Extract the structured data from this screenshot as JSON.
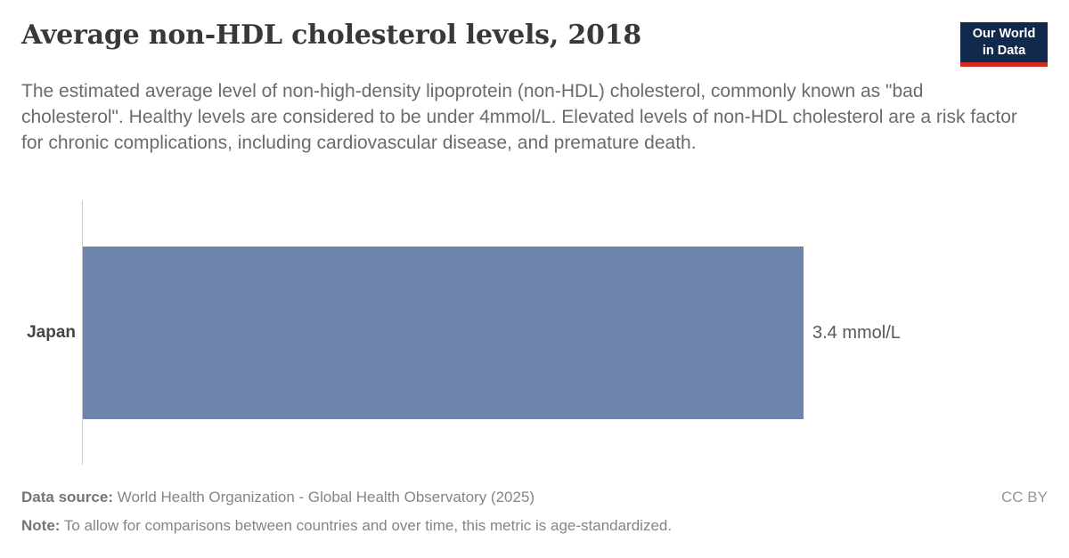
{
  "header": {
    "title": "Average non-HDL cholesterol levels, 2018",
    "logo": {
      "line1": "Our World",
      "line2": "in Data"
    }
  },
  "subtitle": "The estimated average level of non-high-density lipoprotein (non-HDL) cholesterol, commonly known as \"bad cholesterol\". Healthy levels are considered to be under 4mmol/L. Elevated levels of non-HDL cholesterol are a risk factor for chronic complications, including cardiovascular disease, and premature death.",
  "chart_data": {
    "type": "bar",
    "orientation": "horizontal",
    "title": "Average non-HDL cholesterol levels, 2018",
    "categories": [
      "Japan"
    ],
    "values": [
      3.4
    ],
    "value_labels": [
      "3.4 mmol/L"
    ],
    "unit": "mmol/L",
    "xlim": [
      0,
      3.4
    ],
    "grid": false,
    "legend": false,
    "bar_color": "#6d84ac"
  },
  "footer": {
    "data_source_label": "Data source:",
    "data_source": " World Health Organization - Global Health Observatory (2025)",
    "note_label": "Note:",
    "note": " To allow for comparisons between countries and over time, this metric is age-standardized.",
    "license": "CC BY"
  },
  "colors": {
    "bar": "#6d84ac",
    "logo_navy": "#12294e",
    "logo_red": "#d12b1f",
    "title_text": "#383838",
    "subtitle_text": "#6b6b6b",
    "axis_line": "#c9c9c9"
  }
}
